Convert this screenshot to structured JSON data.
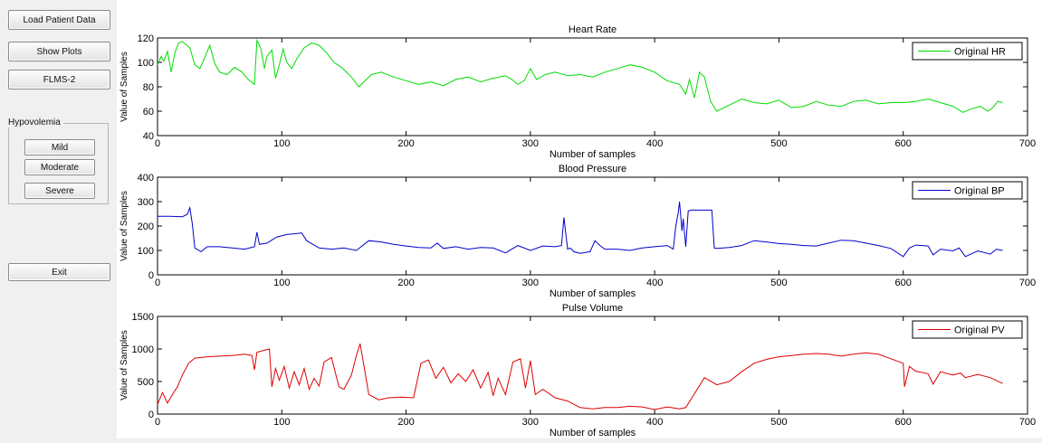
{
  "buttons": {
    "load": "Load Patient Data",
    "show_plots": "Show Plots",
    "flms": "FLMS-2",
    "exit": "Exit"
  },
  "hypovolemia": {
    "title": "Hypovolemia",
    "mild": "Mild",
    "moderate": "Moderate",
    "severe": "Severe"
  },
  "chart_data": [
    {
      "type": "line",
      "title": "Heart Rate",
      "xlabel": "Number of samples",
      "ylabel": "Value of Samples",
      "xlim": [
        0,
        700
      ],
      "ylim": [
        40,
        120
      ],
      "xticks": [
        0,
        100,
        200,
        300,
        400,
        500,
        600,
        700
      ],
      "yticks": [
        40,
        60,
        80,
        100,
        120
      ],
      "legend_position": "top-right",
      "color": "#00dd00",
      "series": [
        {
          "name": "Original HR",
          "x": [
            0,
            3,
            5,
            8,
            11,
            14,
            17,
            20,
            26,
            30,
            34,
            38,
            42,
            46,
            50,
            56,
            62,
            68,
            73,
            78,
            80,
            83,
            86,
            88,
            92,
            95,
            98,
            101,
            104,
            108,
            112,
            118,
            124,
            130,
            136,
            142,
            148,
            156,
            162,
            166,
            172,
            180,
            190,
            200,
            210,
            220,
            230,
            240,
            250,
            260,
            270,
            280,
            285,
            290,
            295,
            300,
            305,
            312,
            320,
            330,
            340,
            350,
            360,
            370,
            380,
            390,
            400,
            410,
            420,
            425,
            428,
            432,
            436,
            440,
            445,
            450,
            460,
            470,
            480,
            490,
            500,
            510,
            520,
            530,
            540,
            550,
            560,
            570,
            580,
            590,
            600,
            610,
            620,
            630,
            640,
            648,
            655,
            662,
            668,
            672,
            676,
            680
          ],
          "values": [
            98,
            105,
            101,
            109,
            92,
            108,
            116,
            117,
            112,
            98,
            95,
            104,
            114,
            99,
            92,
            90,
            96,
            92,
            86,
            82,
            118,
            112,
            95,
            105,
            110,
            87,
            98,
            111,
            100,
            95,
            103,
            112,
            116,
            114,
            108,
            100,
            96,
            88,
            80,
            84,
            90,
            92,
            88,
            85,
            82,
            84,
            81,
            86,
            88,
            84,
            87,
            89,
            86,
            82,
            85,
            95,
            86,
            90,
            92,
            89,
            90,
            88,
            92,
            95,
            98,
            96,
            92,
            85,
            82,
            74,
            86,
            71,
            92,
            88,
            68,
            60,
            65,
            70,
            67,
            66,
            69,
            63,
            64,
            68,
            65,
            64,
            68,
            69,
            66,
            67,
            67,
            68,
            70,
            67,
            64,
            59,
            62,
            64,
            60,
            63,
            68,
            67
          ]
        }
      ]
    },
    {
      "type": "line",
      "title": "Blood Pressure",
      "xlabel": "Number of samples",
      "ylabel": "Value of Samples",
      "xlim": [
        0,
        700
      ],
      "ylim": [
        0,
        400
      ],
      "xticks": [
        0,
        100,
        200,
        300,
        400,
        500,
        600,
        700
      ],
      "yticks": [
        0,
        100,
        200,
        300,
        400
      ],
      "legend_position": "top-right",
      "color": "#0000cc",
      "series": [
        {
          "name": "Original BP",
          "x": [
            0,
            10,
            20,
            24,
            26,
            28,
            30,
            35,
            40,
            50,
            60,
            70,
            78,
            80,
            82,
            88,
            96,
            104,
            110,
            116,
            120,
            130,
            140,
            150,
            160,
            170,
            180,
            190,
            200,
            210,
            220,
            225,
            230,
            240,
            250,
            260,
            270,
            280,
            290,
            300,
            310,
            320,
            325,
            327,
            330,
            332,
            335,
            340,
            348,
            352,
            356,
            360,
            370,
            380,
            390,
            400,
            410,
            415,
            417,
            419,
            420,
            422,
            423,
            425,
            427,
            430,
            440,
            446,
            448,
            450,
            460,
            470,
            480,
            490,
            500,
            510,
            520,
            530,
            540,
            550,
            560,
            570,
            580,
            590,
            600,
            605,
            610,
            620,
            624,
            630,
            640,
            645,
            650,
            660,
            670,
            675,
            680
          ],
          "values": [
            240,
            240,
            238,
            248,
            275,
            210,
            110,
            95,
            115,
            115,
            110,
            105,
            115,
            175,
            125,
            130,
            155,
            165,
            168,
            172,
            140,
            110,
            105,
            110,
            100,
            140,
            135,
            125,
            118,
            112,
            110,
            130,
            108,
            115,
            105,
            112,
            110,
            90,
            120,
            100,
            118,
            115,
            120,
            235,
            105,
            110,
            95,
            88,
            95,
            140,
            120,
            105,
            105,
            100,
            110,
            115,
            120,
            105,
            200,
            255,
            300,
            180,
            230,
            115,
            262,
            265,
            265,
            265,
            110,
            108,
            112,
            120,
            140,
            135,
            128,
            125,
            120,
            118,
            130,
            142,
            140,
            130,
            120,
            108,
            75,
            110,
            122,
            118,
            82,
            105,
            98,
            110,
            75,
            98,
            85,
            105,
            100
          ]
        }
      ]
    },
    {
      "type": "line",
      "title": "Pulse Volume",
      "xlabel": "Number of samples",
      "ylabel": "Value of Samples",
      "xlim": [
        0,
        700
      ],
      "ylim": [
        0,
        1500
      ],
      "xticks": [
        0,
        100,
        200,
        300,
        400,
        500,
        600,
        700
      ],
      "yticks": [
        0,
        500,
        1000,
        1500
      ],
      "legend_position": "top-right",
      "color": "#dd0000",
      "series": [
        {
          "name": "Original PV",
          "x": [
            0,
            4,
            8,
            12,
            16,
            20,
            25,
            30,
            40,
            50,
            60,
            70,
            76,
            78,
            80,
            86,
            90,
            92,
            95,
            98,
            102,
            106,
            110,
            114,
            118,
            122,
            126,
            130,
            134,
            140,
            146,
            150,
            156,
            160,
            163,
            166,
            170,
            178,
            186,
            196,
            206,
            212,
            218,
            224,
            230,
            236,
            242,
            248,
            254,
            260,
            266,
            270,
            274,
            280,
            286,
            292,
            296,
            300,
            304,
            310,
            320,
            330,
            340,
            350,
            360,
            370,
            380,
            390,
            400,
            410,
            420,
            425,
            430,
            440,
            450,
            460,
            470,
            480,
            490,
            500,
            510,
            520,
            530,
            540,
            550,
            560,
            570,
            580,
            590,
            600,
            601,
            605,
            610,
            620,
            624,
            630,
            640,
            646,
            650,
            660,
            670,
            680
          ],
          "values": [
            150,
            330,
            170,
            300,
            420,
            600,
            780,
            860,
            880,
            890,
            900,
            920,
            900,
            680,
            950,
            980,
            1000,
            420,
            700,
            520,
            730,
            400,
            650,
            450,
            700,
            380,
            550,
            430,
            800,
            870,
            420,
            380,
            600,
            900,
            1080,
            750,
            300,
            220,
            250,
            260,
            250,
            780,
            830,
            550,
            720,
            480,
            620,
            500,
            680,
            400,
            640,
            280,
            550,
            300,
            800,
            850,
            400,
            820,
            300,
            380,
            250,
            200,
            100,
            80,
            100,
            100,
            120,
            110,
            70,
            110,
            80,
            100,
            250,
            560,
            450,
            500,
            650,
            780,
            840,
            880,
            900,
            920,
            930,
            920,
            890,
            920,
            940,
            920,
            850,
            780,
            420,
            730,
            660,
            620,
            460,
            650,
            600,
            630,
            560,
            610,
            560,
            470
          ]
        }
      ]
    }
  ]
}
